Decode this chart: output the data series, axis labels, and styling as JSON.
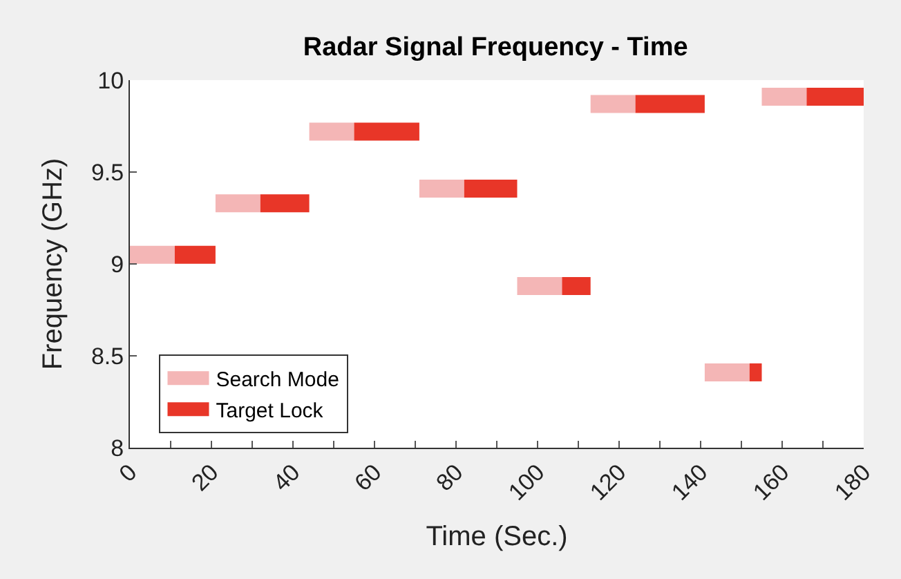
{
  "chart_data": {
    "type": "line",
    "title": "Radar Signal Frequency - Time",
    "xlabel": "Time (Sec.)",
    "ylabel": "Frequency (GHz)",
    "series": [
      {
        "name": "Search Mode",
        "color": "#f4b6b6",
        "x": [
          0,
          11,
          null,
          21,
          32,
          null,
          44,
          55,
          null,
          71,
          82,
          null,
          95,
          106,
          null,
          113,
          124,
          null,
          141,
          152,
          null,
          155,
          166
        ],
        "values": [
          9.05,
          9.05,
          null,
          9.33,
          9.33,
          null,
          9.72,
          9.72,
          null,
          9.41,
          9.41,
          null,
          8.88,
          8.88,
          null,
          9.87,
          9.87,
          null,
          8.41,
          8.41,
          null,
          9.91,
          9.91
        ]
      },
      {
        "name": "Target Lock",
        "color": "#e83628",
        "x": [
          11,
          21,
          null,
          32,
          44,
          null,
          55,
          71,
          null,
          82,
          95,
          null,
          106,
          113,
          null,
          124,
          141,
          null,
          152,
          155,
          null,
          166,
          180
        ],
        "values": [
          9.05,
          9.05,
          null,
          9.33,
          9.33,
          null,
          9.72,
          9.72,
          null,
          9.41,
          9.41,
          null,
          8.88,
          8.88,
          null,
          9.87,
          9.87,
          null,
          8.41,
          8.41,
          null,
          9.91,
          9.91
        ]
      }
    ],
    "xlim": [
      0,
      180
    ],
    "xticks": [
      0,
      {
        "value": 10,
        "label": null
      },
      20,
      {
        "value": 30,
        "label": null
      },
      40,
      {
        "value": 50,
        "label": null
      },
      60,
      {
        "value": 70,
        "label": null
      },
      80,
      {
        "value": 90,
        "label": null
      },
      100,
      {
        "value": 110,
        "label": null
      },
      120,
      {
        "value": 130,
        "label": null
      },
      140,
      {
        "value": 150,
        "label": null
      },
      160,
      {
        "value": 170,
        "label": null
      },
      180
    ],
    "ylim": [
      8,
      10
    ],
    "yticks": [
      8,
      8.5,
      9,
      9.5,
      10
    ],
    "grid": false,
    "legend": "bottom left",
    "line_style": "solid",
    "marker": "none"
  }
}
